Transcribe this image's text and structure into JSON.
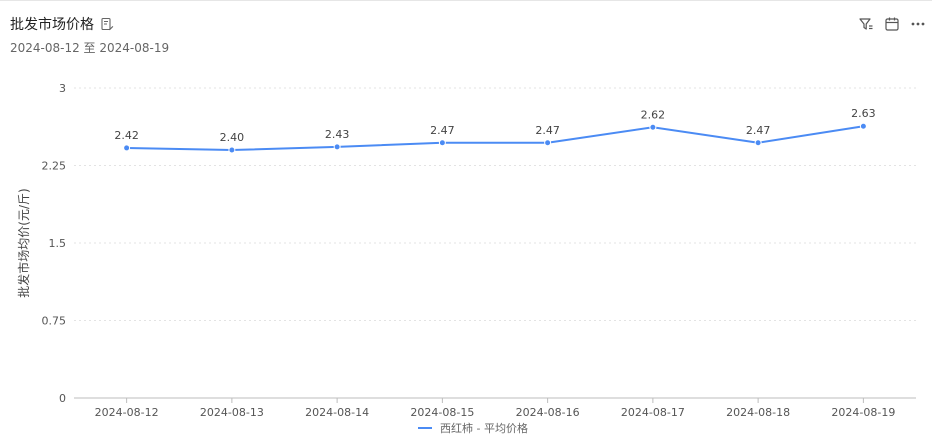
{
  "header": {
    "title": "批发市场价格",
    "date_range": "2024-08-12 至 2024-08-19"
  },
  "toolbar": {
    "icons": [
      "filter-icon",
      "calendar-icon",
      "more-icon"
    ]
  },
  "colors": {
    "series": "#4b8bf4",
    "grid": "#e3e3e3",
    "axis_text": "#555555"
  },
  "chart_data": {
    "type": "line",
    "title": "",
    "xlabel": "",
    "ylabel": "批发市场均价(元/斤)",
    "ylim": [
      0,
      3
    ],
    "yticks": [
      "0",
      "0.75",
      "1.5",
      "2.25",
      "3"
    ],
    "ytick_values": [
      0,
      0.75,
      1.5,
      2.25,
      3
    ],
    "categories": [
      "2024-08-12",
      "2024-08-13",
      "2024-08-14",
      "2024-08-15",
      "2024-08-16",
      "2024-08-17",
      "2024-08-18",
      "2024-08-19"
    ],
    "series": [
      {
        "name": "西红柿 - 平均价格",
        "values": [
          2.42,
          2.4,
          2.43,
          2.47,
          2.47,
          2.62,
          2.47,
          2.63
        ],
        "labels": [
          "2.42",
          "2.40",
          "2.43",
          "2.47",
          "2.47",
          "2.62",
          "2.47",
          "2.63"
        ]
      }
    ],
    "grid": true,
    "legend_position": "bottom"
  }
}
